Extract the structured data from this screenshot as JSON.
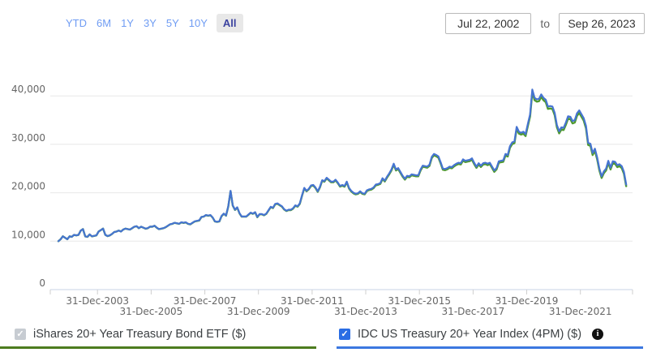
{
  "toolbar": {
    "range_buttons": [
      {
        "label": "YTD",
        "active": false
      },
      {
        "label": "6M",
        "active": false
      },
      {
        "label": "1Y",
        "active": false
      },
      {
        "label": "3Y",
        "active": false
      },
      {
        "label": "5Y",
        "active": false
      },
      {
        "label": "10Y",
        "active": false
      },
      {
        "label": "All",
        "active": true
      }
    ],
    "date_from": "Jul 22, 2002",
    "to_label": "to",
    "date_to": "Sep 26, 2023"
  },
  "icons": {
    "check_glyph": "✓",
    "info_glyph": "i"
  },
  "legend": {
    "etf": {
      "label": "iShares 20+ Year Treasury Bond ETF ($)",
      "checked": true,
      "disabled": true,
      "checkbox_color": "#c7ccd2",
      "underline_color": "#4d7c1f"
    },
    "index": {
      "label": "IDC US Treasury 20+ Year Index (4PM) ($)",
      "checked": true,
      "disabled": false,
      "checkbox_color": "#2a6de4",
      "underline_color": "#3c78e0",
      "has_info_icon": true
    }
  },
  "chart_data": {
    "type": "line",
    "title": "",
    "xlabel": "",
    "ylabel": "",
    "grid": "horizontal-only",
    "legend_position": "bottom",
    "xlim_years": [
      2002.55,
      2023.74
    ],
    "ylim": [
      0,
      45000
    ],
    "colors": {
      "gridline": "#e8e8e8",
      "axis_line": "#c9d3e4",
      "tick": "#cfcfcf",
      "label": "#666666"
    },
    "y_axis": {
      "ticks": [
        {
          "label": "0",
          "value": 0
        },
        {
          "label": "10,000",
          "value": 10000
        },
        {
          "label": "20,000",
          "value": 20000
        },
        {
          "label": "30,000",
          "value": 30000
        },
        {
          "label": "40,000",
          "value": 40000
        }
      ]
    },
    "x_axis": {
      "ticks": [
        {
          "label": "31-Dec-2003",
          "year": 2004.0,
          "row": 1
        },
        {
          "label": "31-Dec-2005",
          "year": 2006.0,
          "row": 2
        },
        {
          "label": "31-Dec-2007",
          "year": 2008.0,
          "row": 1
        },
        {
          "label": "31-Dec-2009",
          "year": 2010.0,
          "row": 2
        },
        {
          "label": "31-Dec-2011",
          "year": 2012.0,
          "row": 1
        },
        {
          "label": "31-Dec-2013",
          "year": 2014.0,
          "row": 2
        },
        {
          "label": "31-Dec-2015",
          "year": 2016.0,
          "row": 1
        },
        {
          "label": "31-Dec-2017",
          "year": 2018.0,
          "row": 2
        },
        {
          "label": "31-Dec-2019",
          "year": 2020.0,
          "row": 1
        },
        {
          "label": "31-Dec-2021",
          "year": 2022.0,
          "row": 2
        }
      ]
    },
    "series": [
      {
        "name": "iShares 20+ Year Treasury Bond ETF ($)",
        "color": "#4f9a2e",
        "note": "ETF tracks the index; plotted as index value times ratio (small tracking gap widens over time)",
        "ratio_to_index_keyframes": [
          [
            2002.55,
            1.0
          ],
          [
            2008.0,
            0.998
          ],
          [
            2014.0,
            0.993
          ],
          [
            2020.0,
            0.988
          ],
          [
            2023.74,
            0.984
          ]
        ]
      },
      {
        "name": "IDC US Treasury 20+ Year Index (4PM) ($)",
        "color": "#4674d1",
        "x_start_year": 2002.5417,
        "x_step_years": 0.0833333,
        "values": [
          10000,
          10400,
          11000,
          10700,
          10400,
          11000,
          10900,
          11300,
          11200,
          11300,
          12200,
          12500,
          11000,
          10900,
          11400,
          11000,
          11100,
          11200,
          12000,
          12300,
          12600,
          11300,
          11050,
          11200,
          11500,
          11900,
          12000,
          12200,
          12000,
          12400,
          12600,
          12500,
          12400,
          12700,
          13000,
          13100,
          12700,
          13000,
          12800,
          12600,
          12700,
          13000,
          13000,
          13200,
          12800,
          12500,
          12600,
          12700,
          12900,
          13200,
          13500,
          13600,
          13800,
          13700,
          13600,
          13900,
          13800,
          13900,
          13600,
          13500,
          13800,
          14100,
          14200,
          14300,
          15000,
          15100,
          15400,
          15300,
          15400,
          14900,
          14100,
          14000,
          14100,
          15200,
          15700,
          15300,
          17200,
          20400,
          17400,
          16500,
          17000,
          15800,
          15100,
          15100,
          15100,
          15500,
          15900,
          15700,
          16000,
          15000,
          15600,
          15600,
          15400,
          15700,
          16400,
          17100,
          16900,
          17700,
          17800,
          17500,
          17200,
          16600,
          16300,
          16500,
          16500,
          16800,
          17400,
          17200,
          17800,
          19500,
          21000,
          20400,
          20800,
          21500,
          21600,
          21100,
          20300,
          21200,
          22600,
          22400,
          23100,
          22700,
          22300,
          22300,
          22700,
          22100,
          21400,
          21600,
          21400,
          22300,
          21000,
          20400,
          20000,
          19800,
          19900,
          20300,
          19900,
          19800,
          20500,
          20700,
          20800,
          21100,
          21700,
          21800,
          22000,
          23000,
          22500,
          23300,
          24000,
          24800,
          26000,
          24800,
          25100,
          24300,
          23500,
          22900,
          23500,
          23400,
          23800,
          23700,
          23600,
          23600,
          24800,
          25600,
          25500,
          25400,
          25800,
          27400,
          28000,
          27800,
          27500,
          26300,
          25000,
          24900,
          25100,
          25400,
          25300,
          25700,
          26000,
          26200,
          26100,
          26900,
          26600,
          26700,
          26800,
          27100,
          26200,
          25400,
          26100,
          25600,
          26100,
          26200,
          26000,
          26200,
          25400,
          24600,
          25100,
          26500,
          26600,
          26700,
          28000,
          27800,
          29600,
          30400,
          30600,
          33600,
          32600,
          32400,
          32600,
          32100,
          34200,
          36200,
          41300,
          39600,
          39300,
          39400,
          40300,
          39600,
          39200,
          37800,
          37900,
          37800,
          36500,
          34000,
          32700,
          33500,
          33400,
          34500,
          35800,
          35700,
          34800,
          35000,
          36400,
          37000,
          36200,
          35400,
          33800,
          30300,
          30100,
          28200,
          29100,
          27300,
          25000,
          23400,
          24400,
          25000,
          26600,
          25200,
          26500,
          26400,
          25700,
          25900,
          25500,
          24300,
          21700
        ]
      }
    ]
  }
}
